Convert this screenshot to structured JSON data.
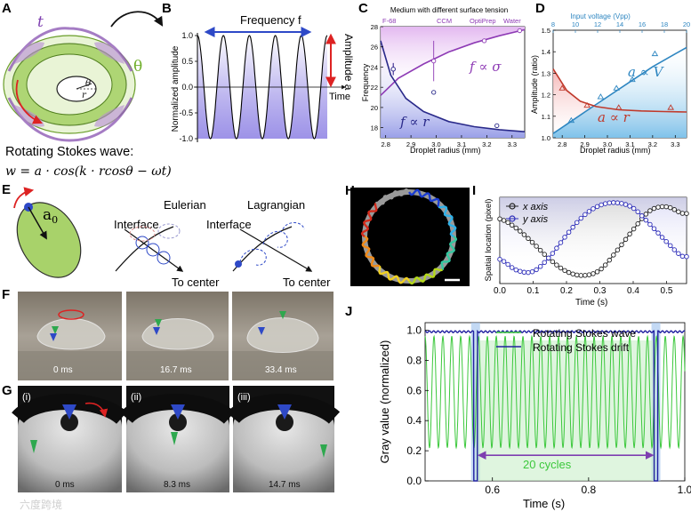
{
  "panel_letters": [
    "A",
    "B",
    "C",
    "D",
    "E",
    "F",
    "G",
    "H",
    "I",
    "J"
  ],
  "panelA": {
    "theta_label": "θ",
    "t_label": "t",
    "inner_theta": "θ",
    "inner_r": "r",
    "wave_title": "Rotating Stokes wave:",
    "wave_equation": "w = a · cos(k · rcosθ − ωt)",
    "colors": {
      "green": "#9bc53d",
      "purple": "#8e5bb5"
    }
  },
  "panelB": {
    "freq_label": "Frequency f",
    "amp_label": "Amplitude a",
    "time_label": "Time",
    "ylabel": "Normalized amplitude",
    "yticks": [
      "1.0",
      "0.5",
      "0.0",
      "-0.5",
      "-1.0"
    ]
  },
  "panelC": {
    "top_title": "Medium with different surface tension",
    "media": [
      "F-68",
      "CCM",
      "OptiPrep",
      "Water"
    ],
    "xlabel": "Droplet radius (mm)",
    "ylabel": "Frequency",
    "ann_sigma": "f ∝ σ",
    "ann_r": "f ∝ r"
  },
  "panelD": {
    "top_title": "Input voltage (Vpp)",
    "xlabel": "Droplet radius (mm)",
    "ylabel": "Amplitude (ratio)",
    "ann_v": "a ∝ V",
    "ann_r": "a ∝ r"
  },
  "panelE": {
    "a0": "a",
    "a0_sub": "0",
    "eulerian_title": "Eulerian",
    "lagrangian_title": "Lagrangian",
    "interface1": "Interface",
    "interface2": "Interface",
    "to_center1": "To center",
    "to_center2": "To center"
  },
  "panelF": {
    "times": [
      "0 ms",
      "16.7 ms",
      "33.4 ms"
    ]
  },
  "panelG": {
    "labels": [
      "(i)",
      "(ii)",
      "(iii)"
    ],
    "times": [
      "0 ms",
      "8.3 ms",
      "14.7 ms"
    ]
  },
  "panelH": {},
  "panelI": {
    "legend_x": "x axis",
    "legend_y": "y axis",
    "xlabel": "Time (s)",
    "ylabel": "Spatial location (pixel)"
  },
  "panelJ": {
    "legend_wave": "Rotating Stokes wave",
    "legend_drift": "Rotating Stokes drift",
    "cycles": "20 cycles",
    "xlabel": "Time (s)",
    "ylabel": "Gray value (normalized)"
  },
  "watermark": "六度跨境",
  "chart_data": [
    {
      "id": "B",
      "type": "line",
      "title": "",
      "xlabel": "Time",
      "ylabel": "Normalized amplitude",
      "ylim": [
        -1.0,
        1.0
      ],
      "yticks": [
        1.0,
        0.5,
        0.0,
        -0.5,
        -1.0
      ],
      "cycles": 5,
      "amplitude": 1.0
    },
    {
      "id": "C",
      "type": "line",
      "xlabel": "Droplet radius (mm)",
      "ylabel": "Frequency",
      "xlim": [
        2.78,
        3.35
      ],
      "ylim": [
        17,
        28
      ],
      "xticks": [
        2.8,
        2.9,
        3.0,
        3.1,
        3.2,
        3.3
      ],
      "yticks": [
        18,
        20,
        22,
        24,
        26,
        28
      ],
      "series": [
        {
          "name": "f ∝ σ",
          "color": "#8e3bb5",
          "x": [
            2.78,
            2.85,
            2.95,
            3.05,
            3.15,
            3.25,
            3.35
          ],
          "y": [
            21.2,
            22.9,
            24.3,
            25.5,
            26.4,
            27.1,
            27.7
          ],
          "points_x": [
            2.83,
            2.99,
            3.19,
            3.33
          ],
          "points_y": [
            23.8,
            24.6,
            26.6,
            27.6
          ],
          "points_err": [
            0.6,
            2.0,
            0.2,
            0.2
          ]
        },
        {
          "name": "f ∝ r",
          "color": "#2a2a8a",
          "x": [
            2.78,
            2.82,
            2.88,
            2.95,
            3.05,
            3.15,
            3.25,
            3.35
          ],
          "y": [
            26.6,
            23.2,
            20.9,
            19.6,
            18.6,
            18.1,
            17.8,
            17.6
          ],
          "points_x": [
            2.83,
            2.99,
            3.24
          ],
          "points_y": [
            23.8,
            21.5,
            18.2
          ],
          "points_err": [
            0.6,
            0.2,
            0.2
          ]
        }
      ]
    },
    {
      "id": "D",
      "type": "line",
      "xlabel": "Droplet radius (mm)",
      "ylabel": "Amplitude (ratio)",
      "xlim": [
        2.76,
        3.35
      ],
      "ylim": [
        1.0,
        1.5
      ],
      "xticks": [
        2.8,
        2.9,
        3.0,
        3.1,
        3.2,
        3.3
      ],
      "yticks": [
        1.0,
        1.1,
        1.2,
        1.3,
        1.4,
        1.5
      ],
      "top_ticks": [
        8,
        10,
        12,
        14,
        16,
        18,
        20
      ],
      "series": [
        {
          "name": "a ∝ V",
          "color": "#2e86c1",
          "x": [
            2.76,
            2.9,
            3.0,
            3.1,
            3.2,
            3.3,
            3.35
          ],
          "y": [
            1.02,
            1.12,
            1.19,
            1.26,
            1.33,
            1.39,
            1.42
          ],
          "points_x": [
            2.84,
            2.97,
            3.04,
            3.11,
            3.21
          ],
          "points_y": [
            1.08,
            1.19,
            1.23,
            1.27,
            1.39
          ]
        },
        {
          "name": "a ∝ r",
          "color": "#c0392b",
          "x": [
            2.76,
            2.82,
            2.88,
            2.95,
            3.05,
            3.15,
            3.25,
            3.35
          ],
          "y": [
            1.32,
            1.22,
            1.17,
            1.145,
            1.13,
            1.125,
            1.122,
            1.12
          ],
          "points_x": [
            2.8,
            2.91,
            3.05,
            3.28
          ],
          "points_y": [
            1.23,
            1.15,
            1.14,
            1.14
          ]
        }
      ]
    },
    {
      "id": "I",
      "type": "line",
      "xlabel": "Time (s)",
      "ylabel": "Spatial location (pixel)",
      "xlim": [
        0.0,
        0.56
      ],
      "ylim": [
        20,
        340
      ],
      "xticks": [
        0.0,
        0.1,
        0.2,
        0.3,
        0.4,
        0.5
      ],
      "series": [
        {
          "name": "x axis",
          "color": "#222222",
          "x": [
            0.0,
            0.05,
            0.1,
            0.15,
            0.2,
            0.25,
            0.3,
            0.35,
            0.4,
            0.45,
            0.5,
            0.55
          ],
          "y": [
            260,
            225,
            170,
            110,
            65,
            50,
            70,
            140,
            220,
            290,
            305,
            280
          ]
        },
        {
          "name": "y axis",
          "color": "#2b2bb8",
          "x": [
            0.0,
            0.05,
            0.1,
            0.15,
            0.2,
            0.25,
            0.3,
            0.35,
            0.4,
            0.45,
            0.5,
            0.55
          ],
          "y": [
            110,
            70,
            65,
            120,
            200,
            270,
            310,
            320,
            300,
            240,
            175,
            120
          ]
        }
      ]
    },
    {
      "id": "J",
      "type": "line",
      "xlabel": "Time (s)",
      "ylabel": "Gray value (normalized)",
      "xlim": [
        0.46,
        1.0
      ],
      "ylim": [
        0.0,
        1.05
      ],
      "xticks": [
        0.6,
        0.8,
        1.0
      ],
      "yticks": [
        0.0,
        0.2,
        0.4,
        0.6,
        0.8,
        1.0
      ],
      "series": [
        {
          "name": "Rotating Stokes wave",
          "color": "#3cc83c",
          "periodic": true,
          "period": 0.0185,
          "min": 0.22,
          "max": 0.96
        },
        {
          "name": "Rotating Stokes drift",
          "color": "#2020a0",
          "baseline": 0.99,
          "dips_at": [
            0.565,
            0.94
          ],
          "dip_min": 0.0
        }
      ],
      "highlight": [
        0.565,
        0.94
      ],
      "annotation": "20 cycles"
    }
  ]
}
